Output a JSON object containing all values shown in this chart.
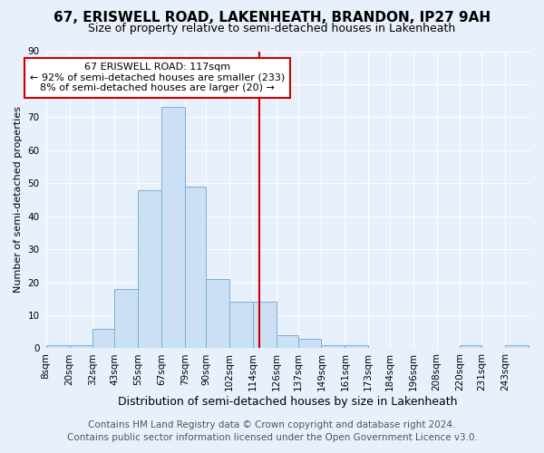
{
  "title": "67, ERISWELL ROAD, LAKENHEATH, BRANDON, IP27 9AH",
  "subtitle": "Size of property relative to semi-detached houses in Lakenheath",
  "xlabel": "Distribution of semi-detached houses by size in Lakenheath",
  "ylabel": "Number of semi-detached properties",
  "bin_labels": [
    "8sqm",
    "20sqm",
    "32sqm",
    "43sqm",
    "55sqm",
    "67sqm",
    "79sqm",
    "90sqm",
    "102sqm",
    "114sqm",
    "126sqm",
    "137sqm",
    "149sqm",
    "161sqm",
    "173sqm",
    "184sqm",
    "196sqm",
    "208sqm",
    "220sqm",
    "231sqm",
    "243sqm"
  ],
  "bin_edges": [
    8,
    20,
    32,
    43,
    55,
    67,
    79,
    90,
    102,
    114,
    126,
    137,
    149,
    161,
    173,
    184,
    196,
    208,
    220,
    231,
    243,
    255
  ],
  "bar_heights": [
    1,
    1,
    6,
    18,
    48,
    73,
    49,
    21,
    14,
    14,
    4,
    3,
    1,
    1,
    0,
    0,
    0,
    0,
    1,
    0,
    1
  ],
  "bar_color": "#cce0f5",
  "bar_edge_color": "#7ab0d8",
  "property_value": 117,
  "vline_color": "#cc0000",
  "annotation_line1": "67 ERISWELL ROAD: 117sqm",
  "annotation_line2": "← 92% of semi-detached houses are smaller (233)",
  "annotation_line3": "8% of semi-detached houses are larger (20) →",
  "annotation_box_color": "#ffffff",
  "annotation_box_edge_color": "#cc0000",
  "ylim": [
    0,
    90
  ],
  "yticks": [
    0,
    10,
    20,
    30,
    40,
    50,
    60,
    70,
    80,
    90
  ],
  "footer_line1": "Contains HM Land Registry data © Crown copyright and database right 2024.",
  "footer_line2": "Contains public sector information licensed under the Open Government Licence v3.0.",
  "bg_color": "#e8f0fb",
  "plot_bg_color": "#e8f0fb",
  "title_fontsize": 11,
  "subtitle_fontsize": 9,
  "ylabel_fontsize": 8,
  "xlabel_fontsize": 9,
  "tick_fontsize": 7.5,
  "footer_fontsize": 7.5
}
